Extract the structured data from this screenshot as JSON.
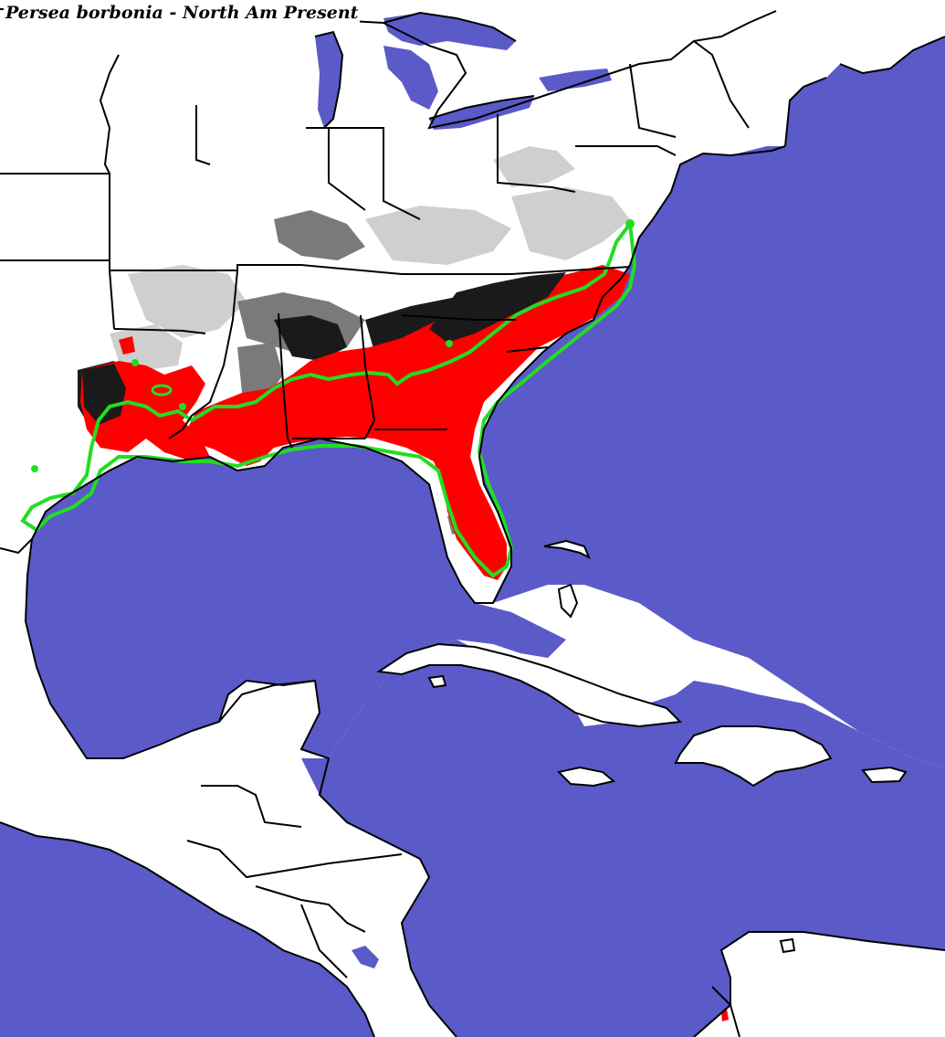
{
  "title": "Persea borbonia - North Am Present",
  "colors": {
    "water": "#5a5ac8",
    "land": "#ffffff",
    "borders": "#000000",
    "predicted_range": "#ff0000",
    "elevation_dark": "#1a1a1a",
    "elevation_mid": "#7a7a7a",
    "elevation_light": "#cfcfcf",
    "observed_range_outline": "#22dd22"
  },
  "layers": [
    {
      "name": "Water bodies",
      "color": "water"
    },
    {
      "name": "Land",
      "color": "land"
    },
    {
      "name": "Political borders",
      "color": "borders"
    },
    {
      "name": "Predicted present range",
      "color": "predicted_range"
    },
    {
      "name": "Elevation shading",
      "color": "elevation_mid"
    },
    {
      "name": "Known range outline",
      "color": "observed_range_outline"
    }
  ]
}
